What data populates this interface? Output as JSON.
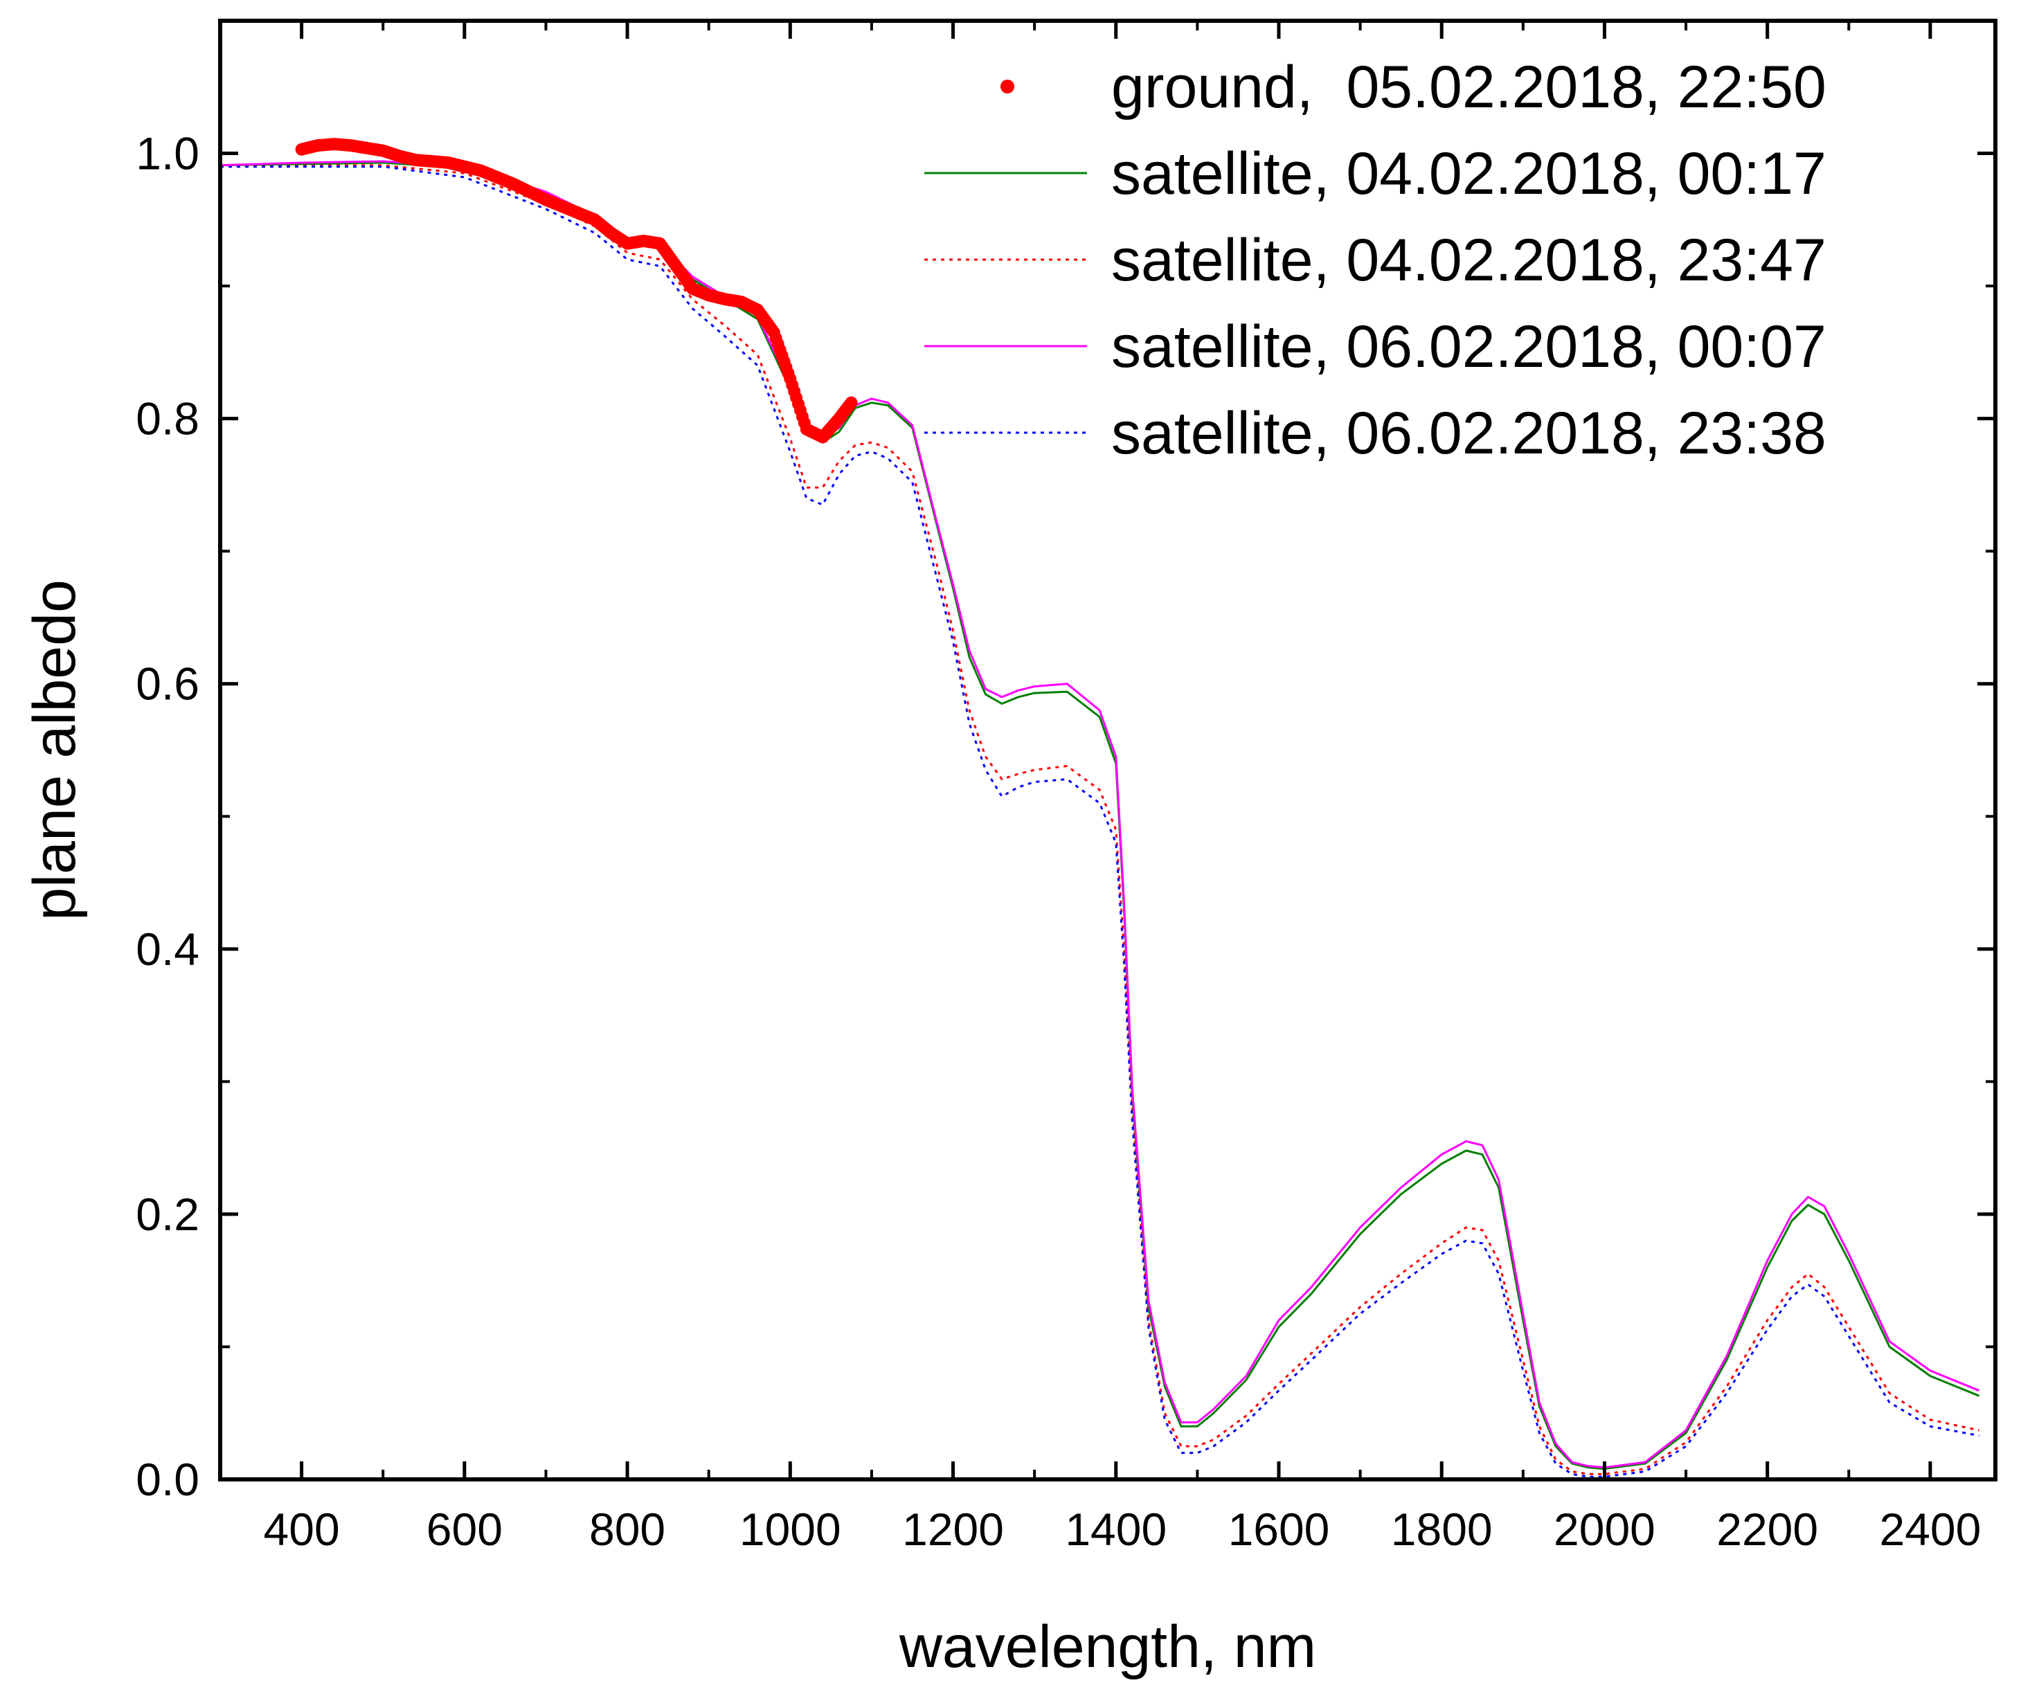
{
  "chart_data": {
    "type": "line",
    "title": "",
    "xlabel": "wavelength, nm",
    "ylabel": "plane albedo",
    "xlim": [
      300,
      2480
    ],
    "ylim": [
      0.0,
      1.1
    ],
    "xticks": [
      400,
      600,
      800,
      1000,
      1200,
      1400,
      1600,
      1800,
      2000,
      2200,
      2400
    ],
    "yticks": [
      0.0,
      0.2,
      0.4,
      0.6,
      0.8,
      1.0
    ],
    "xtick_labels": [
      "400",
      "600",
      "800",
      "1000",
      "1200",
      "1400",
      "1600",
      "1800",
      "2000",
      "2200",
      "2400"
    ],
    "ytick_labels": [
      "0.0",
      "0.2",
      "0.4",
      "0.6",
      "0.8",
      "1.0"
    ],
    "legend_position": "top-right",
    "grid": false,
    "series": [
      {
        "name": "ground,  05.02.2018, 22:50",
        "style": "markers",
        "color": "#ff0000",
        "x": [
          400,
          420,
          440,
          460,
          480,
          500,
          520,
          540,
          560,
          580,
          600,
          620,
          640,
          660,
          680,
          700,
          720,
          740,
          760,
          780,
          800,
          820,
          840,
          860,
          880,
          900,
          920,
          940,
          960,
          980,
          1000,
          1020,
          1040,
          1060,
          1075
        ],
        "y": [
          1.003,
          1.006,
          1.007,
          1.006,
          1.004,
          1.002,
          0.998,
          0.995,
          0.994,
          0.993,
          0.99,
          0.987,
          0.982,
          0.977,
          0.971,
          0.965,
          0.96,
          0.955,
          0.95,
          0.94,
          0.932,
          0.934,
          0.932,
          0.915,
          0.898,
          0.893,
          0.89,
          0.888,
          0.882,
          0.865,
          0.83,
          0.792,
          0.786,
          0.8,
          0.812
        ]
      },
      {
        "name": "satellite, 04.02.2018, 00:17",
        "style": "solid",
        "color": "#008000",
        "x": [
          300,
          400,
          500,
          600,
          700,
          760,
          800,
          840,
          880,
          920,
          960,
          1000,
          1020,
          1040,
          1060,
          1080,
          1100,
          1120,
          1150,
          1180,
          1200,
          1220,
          1240,
          1260,
          1280,
          1300,
          1340,
          1380,
          1400,
          1410,
          1420,
          1440,
          1460,
          1480,
          1500,
          1520,
          1560,
          1600,
          1640,
          1700,
          1750,
          1800,
          1830,
          1850,
          1870,
          1900,
          1920,
          1940,
          1960,
          1980,
          2000,
          2050,
          2100,
          2150,
          2200,
          2230,
          2250,
          2270,
          2300,
          2350,
          2400,
          2460
        ],
        "y": [
          0.991,
          0.992,
          0.993,
          0.989,
          0.97,
          0.952,
          0.932,
          0.93,
          0.905,
          0.89,
          0.875,
          0.822,
          0.792,
          0.782,
          0.79,
          0.808,
          0.812,
          0.81,
          0.793,
          0.72,
          0.672,
          0.62,
          0.592,
          0.585,
          0.59,
          0.593,
          0.594,
          0.575,
          0.54,
          0.43,
          0.29,
          0.13,
          0.07,
          0.04,
          0.04,
          0.05,
          0.075,
          0.115,
          0.14,
          0.185,
          0.215,
          0.238,
          0.248,
          0.245,
          0.22,
          0.12,
          0.055,
          0.025,
          0.012,
          0.009,
          0.008,
          0.012,
          0.035,
          0.09,
          0.16,
          0.195,
          0.207,
          0.2,
          0.165,
          0.1,
          0.078,
          0.063
        ]
      },
      {
        "name": "satellite, 04.02.2018, 23:47",
        "style": "dotted",
        "color": "#ff0000",
        "x": [
          300,
          400,
          500,
          600,
          700,
          760,
          800,
          840,
          880,
          920,
          960,
          1000,
          1020,
          1040,
          1060,
          1080,
          1100,
          1120,
          1150,
          1180,
          1200,
          1220,
          1240,
          1260,
          1280,
          1300,
          1340,
          1380,
          1400,
          1410,
          1420,
          1440,
          1460,
          1480,
          1500,
          1520,
          1560,
          1600,
          1640,
          1700,
          1750,
          1800,
          1830,
          1850,
          1870,
          1900,
          1920,
          1940,
          1960,
          1980,
          2000,
          2050,
          2100,
          2150,
          2200,
          2230,
          2250,
          2270,
          2300,
          2350,
          2400,
          2460
        ],
        "y": [
          0.99,
          0.991,
          0.991,
          0.985,
          0.962,
          0.945,
          0.925,
          0.92,
          0.89,
          0.87,
          0.848,
          0.785,
          0.748,
          0.748,
          0.768,
          0.78,
          0.782,
          0.778,
          0.76,
          0.69,
          0.64,
          0.58,
          0.545,
          0.528,
          0.532,
          0.535,
          0.538,
          0.52,
          0.49,
          0.4,
          0.28,
          0.12,
          0.05,
          0.025,
          0.025,
          0.03,
          0.048,
          0.072,
          0.095,
          0.13,
          0.155,
          0.178,
          0.19,
          0.188,
          0.165,
          0.09,
          0.04,
          0.015,
          0.006,
          0.004,
          0.004,
          0.008,
          0.028,
          0.07,
          0.12,
          0.145,
          0.155,
          0.145,
          0.115,
          0.065,
          0.045,
          0.037
        ]
      },
      {
        "name": "satellite, 06.02.2018, 00:07",
        "style": "solid",
        "color": "#ff00ff",
        "x": [
          300,
          400,
          500,
          600,
          700,
          760,
          800,
          840,
          880,
          920,
          960,
          1000,
          1020,
          1040,
          1060,
          1080,
          1100,
          1120,
          1150,
          1180,
          1200,
          1220,
          1240,
          1260,
          1280,
          1300,
          1340,
          1380,
          1400,
          1410,
          1420,
          1440,
          1460,
          1480,
          1500,
          1520,
          1560,
          1600,
          1640,
          1700,
          1750,
          1800,
          1830,
          1850,
          1870,
          1900,
          1920,
          1940,
          1960,
          1980,
          2000,
          2050,
          2100,
          2150,
          2200,
          2230,
          2250,
          2270,
          2300,
          2350,
          2400,
          2460
        ],
        "y": [
          0.991,
          0.993,
          0.994,
          0.99,
          0.971,
          0.953,
          0.933,
          0.932,
          0.907,
          0.892,
          0.877,
          0.825,
          0.795,
          0.785,
          0.793,
          0.81,
          0.815,
          0.812,
          0.795,
          0.722,
          0.675,
          0.625,
          0.596,
          0.59,
          0.595,
          0.598,
          0.6,
          0.58,
          0.545,
          0.435,
          0.295,
          0.135,
          0.073,
          0.043,
          0.043,
          0.053,
          0.078,
          0.12,
          0.145,
          0.19,
          0.22,
          0.245,
          0.255,
          0.252,
          0.226,
          0.125,
          0.058,
          0.027,
          0.013,
          0.01,
          0.009,
          0.013,
          0.037,
          0.093,
          0.165,
          0.2,
          0.213,
          0.206,
          0.17,
          0.104,
          0.082,
          0.067
        ]
      },
      {
        "name": "satellite, 06.02.2018, 23:38",
        "style": "dotted",
        "color": "#0000ff",
        "x": [
          300,
          400,
          500,
          600,
          700,
          760,
          800,
          840,
          880,
          920,
          960,
          1000,
          1020,
          1040,
          1060,
          1080,
          1100,
          1120,
          1150,
          1180,
          1200,
          1220,
          1240,
          1260,
          1280,
          1300,
          1340,
          1380,
          1400,
          1410,
          1420,
          1440,
          1460,
          1480,
          1500,
          1520,
          1560,
          1600,
          1640,
          1700,
          1750,
          1800,
          1830,
          1850,
          1870,
          1900,
          1920,
          1940,
          1960,
          1980,
          2000,
          2050,
          2100,
          2150,
          2200,
          2230,
          2250,
          2270,
          2300,
          2350,
          2400,
          2460
        ],
        "y": [
          0.99,
          0.99,
          0.99,
          0.982,
          0.958,
          0.94,
          0.92,
          0.915,
          0.883,
          0.862,
          0.84,
          0.775,
          0.74,
          0.735,
          0.758,
          0.772,
          0.775,
          0.77,
          0.752,
          0.68,
          0.632,
          0.57,
          0.535,
          0.515,
          0.522,
          0.526,
          0.528,
          0.51,
          0.48,
          0.39,
          0.27,
          0.115,
          0.045,
          0.02,
          0.02,
          0.025,
          0.043,
          0.067,
          0.09,
          0.125,
          0.148,
          0.17,
          0.18,
          0.178,
          0.155,
          0.082,
          0.035,
          0.012,
          0.004,
          0.002,
          0.002,
          0.006,
          0.025,
          0.065,
          0.113,
          0.138,
          0.147,
          0.138,
          0.108,
          0.058,
          0.04,
          0.033
        ]
      }
    ]
  }
}
